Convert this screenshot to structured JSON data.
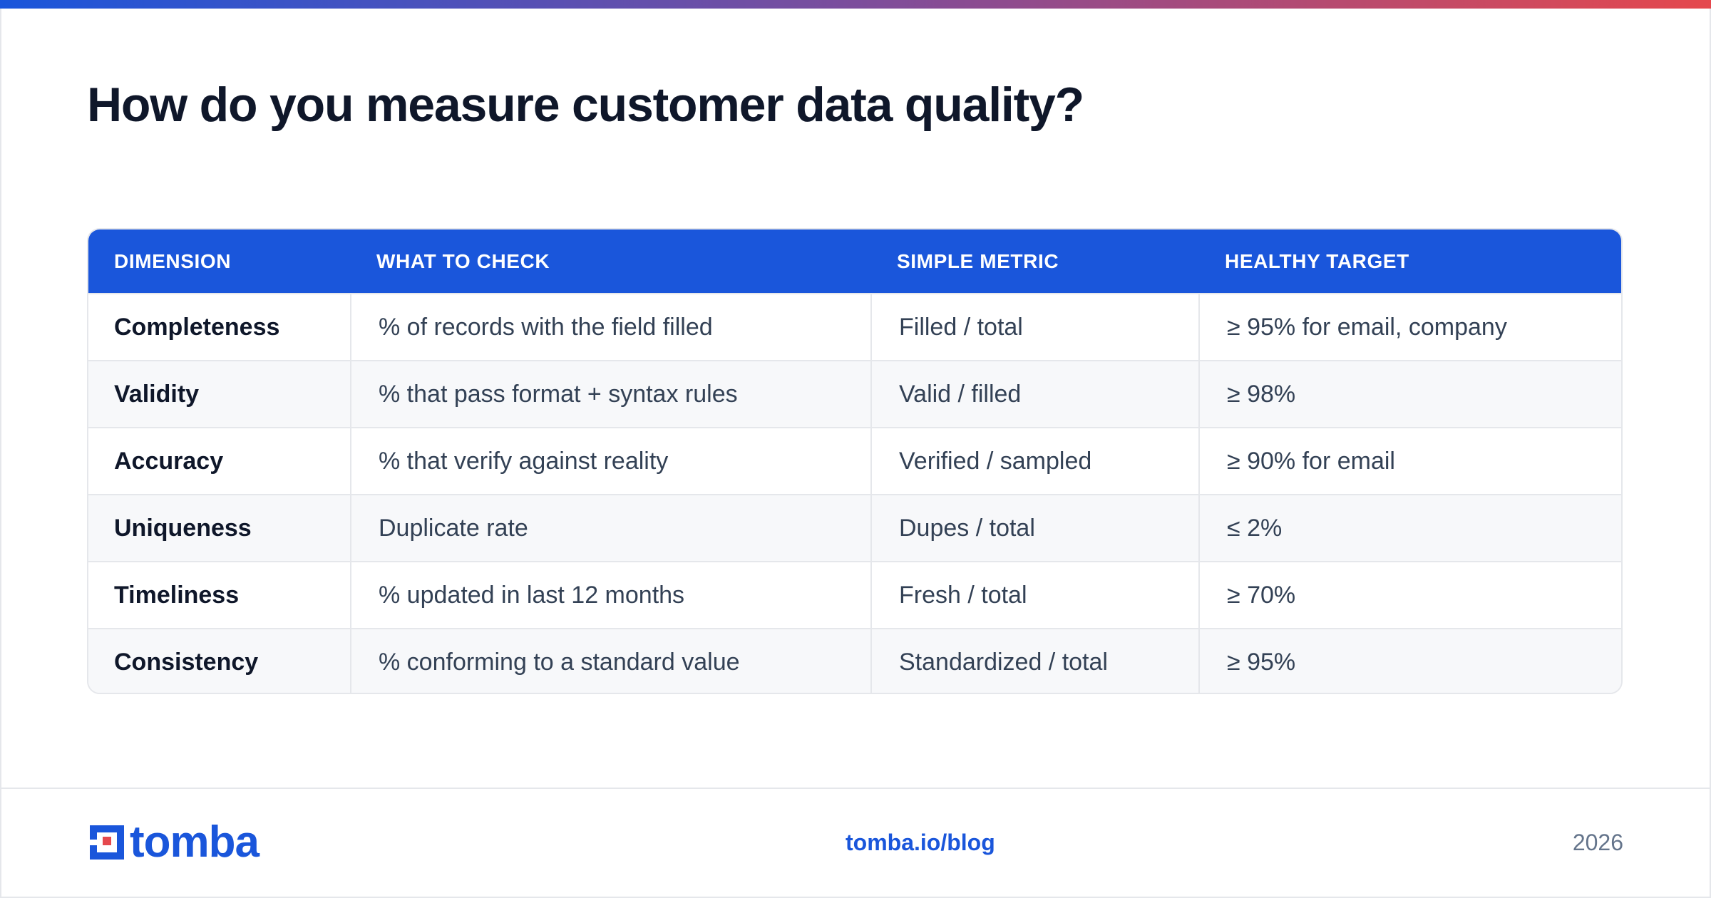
{
  "title": "How do you measure customer data quality?",
  "brand_color": "#1a56db",
  "table": {
    "headers": [
      "DIMENSION",
      "WHAT TO CHECK",
      "SIMPLE METRIC",
      "HEALTHY TARGET"
    ],
    "rows": [
      [
        "Completeness",
        "% of records with the field filled",
        "Filled / total",
        "≥ 95% for email, company"
      ],
      [
        "Validity",
        "% that pass format + syntax rules",
        "Valid / filled",
        "≥ 98%"
      ],
      [
        "Accuracy",
        "% that verify against reality",
        "Verified / sampled",
        "≥ 90% for email"
      ],
      [
        "Uniqueness",
        "Duplicate rate",
        "Dupes / total",
        "≤ 2%"
      ],
      [
        "Timeliness",
        "% updated in last 12 months",
        "Fresh / total",
        "≥ 70%"
      ],
      [
        "Consistency",
        "% conforming to a standard value",
        "Standardized / total",
        "≥ 95%"
      ]
    ]
  },
  "footer": {
    "logo_text": "tomba",
    "logo_icon": "tomba-logo-icon",
    "link": "tomba.io/blog",
    "year": "2026"
  }
}
